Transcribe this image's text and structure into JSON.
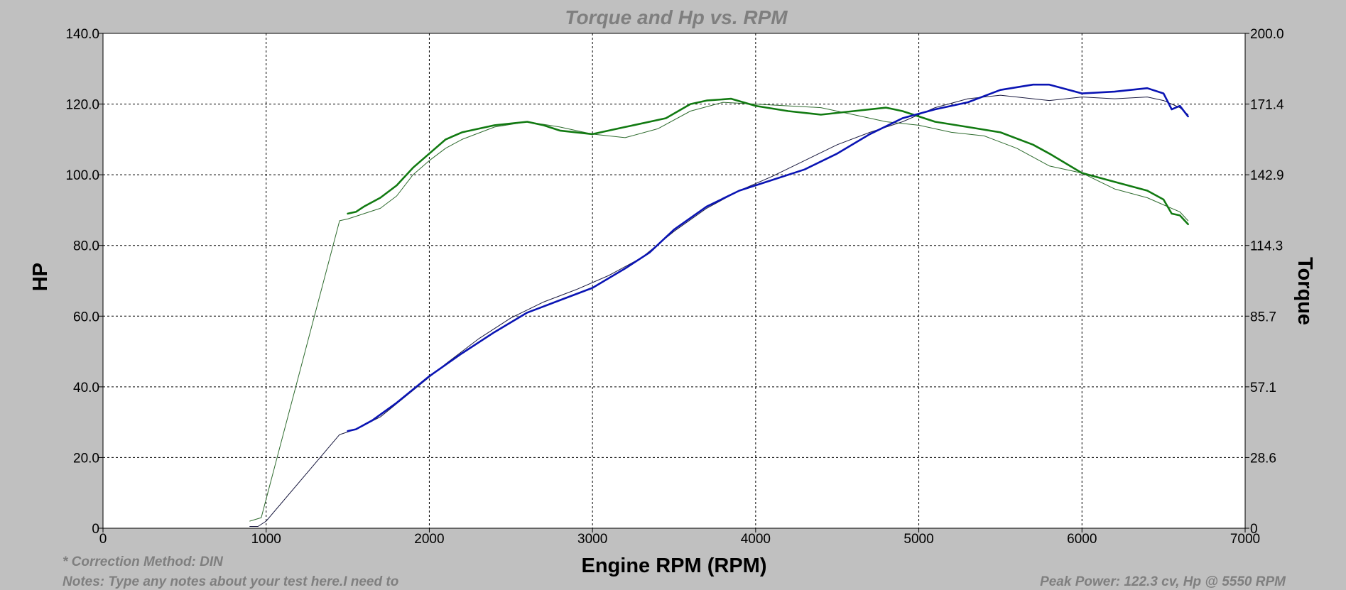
{
  "chart_data": {
    "type": "line",
    "title": "Torque and Hp vs. RPM",
    "xlabel": "Engine RPM (RPM)",
    "ylabel_left": "HP",
    "ylabel_right": "Torque",
    "xlim": [
      0,
      7000
    ],
    "ylim_left": [
      0,
      140
    ],
    "ylim_right": [
      0,
      200
    ],
    "x_ticks": [
      "0",
      "1000",
      "2000",
      "3000",
      "4000",
      "5000",
      "6000",
      "7000"
    ],
    "y_left_ticks": [
      "0",
      "20.0",
      "40.0",
      "60.0",
      "80.0",
      "100.0",
      "120.0",
      "140.0"
    ],
    "y_right_ticks": [
      "0",
      "28.6",
      "57.1",
      "85.7",
      "114.3",
      "142.9",
      "171.4",
      "200.0"
    ],
    "grid": true,
    "colors": {
      "hp": "#0a14b4",
      "torque": "#117a11",
      "hp_ref": "#1a1a40",
      "torque_ref": "#2e6b2e"
    },
    "series": [
      {
        "role": "hp",
        "axis": "left",
        "x": [
          1500,
          1550,
          1650,
          1800,
          2000,
          2200,
          2400,
          2600,
          2800,
          3000,
          3200,
          3350,
          3500,
          3700,
          3900,
          4100,
          4300,
          4500,
          4700,
          4900,
          5100,
          5300,
          5500,
          5700,
          5800,
          6000,
          6200,
          6400,
          6500,
          6550,
          6600,
          6650
        ],
        "y": [
          27.5,
          28,
          30.5,
          35.5,
          43,
          49.5,
          55.5,
          61,
          64.5,
          68,
          73.5,
          78,
          84.5,
          91,
          95.5,
          98.5,
          101.5,
          106,
          111.5,
          116,
          118.5,
          120.5,
          124,
          125.5,
          125.5,
          123,
          123.5,
          124.5,
          123,
          118.5,
          119.5,
          116.5
        ]
      },
      {
        "role": "torque",
        "axis": "left",
        "x": [
          1500,
          1550,
          1600,
          1700,
          1800,
          1900,
          2000,
          2100,
          2200,
          2400,
          2600,
          2700,
          2800,
          3000,
          3200,
          3350,
          3450,
          3600,
          3700,
          3850,
          4000,
          4200,
          4400,
          4600,
          4800,
          4900,
          5100,
          5300,
          5500,
          5700,
          5800,
          6000,
          6200,
          6400,
          6500,
          6550,
          6600,
          6650
        ],
        "y": [
          89,
          89.5,
          91,
          93.5,
          97,
          102,
          106,
          110,
          112,
          114,
          115,
          114,
          112.5,
          111.5,
          113.5,
          115,
          116,
          120,
          121,
          121.5,
          119.5,
          118,
          117,
          118,
          119,
          118,
          115,
          113.5,
          112,
          108.5,
          106,
          100.5,
          98,
          95.5,
          93,
          89,
          88.5,
          86
        ]
      },
      {
        "role": "hp_ref",
        "axis": "left",
        "x": [
          900,
          950,
          1000,
          1450,
          1550,
          1700,
          1900,
          2100,
          2300,
          2500,
          2700,
          2900,
          3100,
          3300,
          3500,
          3700,
          3900,
          4100,
          4300,
          4500,
          4700,
          4900,
          5100,
          5300,
          5500,
          5600,
          5800,
          6000,
          6200,
          6400,
          6500,
          6600,
          6650
        ],
        "y": [
          0.5,
          0.5,
          2,
          26.5,
          28,
          31.5,
          39,
          46.5,
          53.5,
          59.5,
          64,
          67.5,
          71.5,
          76.5,
          84,
          90.5,
          95.5,
          99.5,
          104,
          108.5,
          112,
          115,
          119,
          121.5,
          122.5,
          122,
          121,
          122,
          121.5,
          122,
          121,
          119,
          117
        ]
      },
      {
        "role": "torque_ref",
        "axis": "left",
        "x": [
          900,
          970,
          1450,
          1500,
          1600,
          1700,
          1800,
          1900,
          2000,
          2100,
          2200,
          2400,
          2600,
          2800,
          3000,
          3200,
          3400,
          3600,
          3800,
          4000,
          4200,
          4400,
          4600,
          4800,
          5000,
          5200,
          5400,
          5600,
          5800,
          6000,
          6200,
          6400,
          6500,
          6600,
          6650
        ],
        "y": [
          2,
          3,
          87,
          87.5,
          89,
          90.5,
          94,
          100,
          104,
          107.5,
          110,
          113.5,
          115,
          113.5,
          111.5,
          110.5,
          113,
          118,
          120.5,
          120,
          119.5,
          119,
          117,
          115,
          114,
          112,
          111,
          107.5,
          102.5,
          100.5,
          96,
          93.5,
          91.5,
          89.5,
          87
        ]
      }
    ]
  },
  "notes": {
    "correction": "* Correction Method: DIN",
    "notes": "Notes: Type any notes about your test here.I need to",
    "peak": "Peak Power: 122.3 cv, Hp @ 5550 RPM"
  }
}
